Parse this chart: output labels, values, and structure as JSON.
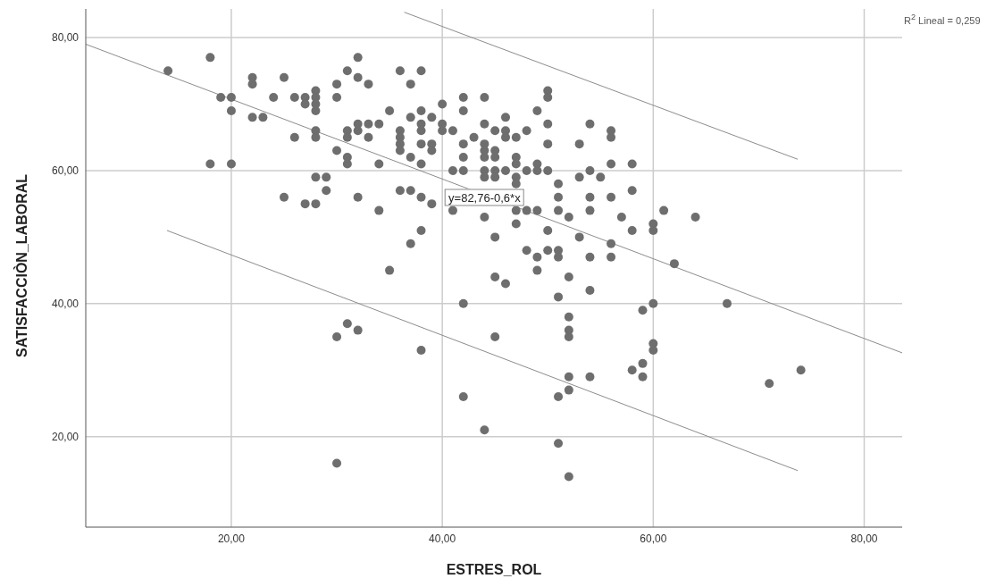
{
  "chart_data": {
    "type": "scatter",
    "xlabel": "ESTRES_ROL",
    "ylabel": "SATISFACCIÒN_LABORAL",
    "xlim": [
      6.2,
      83.6
    ],
    "ylim": [
      6.4,
      84.3
    ],
    "xticks": [
      {
        "value": 20,
        "label": "20,00"
      },
      {
        "value": 40,
        "label": "40,00"
      },
      {
        "value": 60,
        "label": "60,00"
      },
      {
        "value": 80,
        "label": "80,00"
      }
    ],
    "yticks": [
      {
        "value": 20,
        "label": "20,00"
      },
      {
        "value": 40,
        "label": "40,00"
      },
      {
        "value": 60,
        "label": "60,00"
      },
      {
        "value": 80,
        "label": "80,00"
      }
    ],
    "grid": true,
    "annotations": [
      {
        "text": "y=82,76-0,6*x",
        "x": 44,
        "y": 56
      },
      "R$^{2}$ Lineal = 0,259"
    ],
    "series": [
      {
        "marker": "circle",
        "color": "#6e6e6e",
        "x": [
          14,
          18,
          19,
          20,
          20,
          18,
          20,
          22,
          22,
          22,
          23,
          24,
          25,
          25,
          26,
          26,
          27,
          27,
          27,
          28,
          28,
          28,
          28,
          28,
          28,
          28,
          28,
          29,
          29,
          30,
          30,
          30,
          31,
          31,
          31,
          31,
          31,
          32,
          32,
          32,
          32,
          32,
          33,
          33,
          33,
          34,
          34,
          34,
          35,
          36,
          36,
          36,
          36,
          36,
          36,
          37,
          37,
          37,
          37,
          37,
          38,
          38,
          38,
          38,
          38,
          38,
          38,
          38,
          39,
          39,
          39,
          39,
          40,
          40,
          40,
          41,
          41,
          41,
          42,
          42,
          42,
          42,
          42,
          43,
          44,
          44,
          44,
          44,
          44,
          44,
          44,
          44,
          45,
          45,
          45,
          45,
          45,
          45,
          46,
          46,
          46,
          46,
          47,
          47,
          47,
          47,
          47,
          47,
          47,
          48,
          48,
          48,
          49,
          49,
          49,
          49,
          50,
          50,
          50,
          50,
          50,
          50,
          51,
          51,
          51,
          53,
          53,
          53,
          54,
          54,
          54,
          54,
          55,
          56,
          56,
          58,
          56,
          58,
          56,
          57,
          61,
          64,
          51,
          60,
          60,
          58,
          56,
          51,
          54,
          56,
          62,
          52,
          54,
          51,
          60,
          67,
          59,
          52,
          52,
          52,
          52,
          60,
          60,
          59,
          58,
          59,
          52,
          54,
          52,
          51,
          51,
          52,
          71,
          74,
          30,
          31,
          32,
          30,
          35,
          38,
          42,
          42,
          44,
          45,
          45,
          46,
          48,
          49,
          49,
          50
        ],
        "values": [
          75,
          77,
          71,
          71,
          69,
          61,
          61,
          74,
          73,
          68,
          68,
          71,
          74,
          56,
          71,
          65,
          71,
          70,
          55,
          72,
          71,
          70,
          69,
          66,
          65,
          59,
          55,
          59,
          57,
          73,
          71,
          63,
          75,
          66,
          65,
          62,
          61,
          77,
          74,
          67,
          66,
          56,
          73,
          67,
          65,
          67,
          61,
          54,
          69,
          75,
          66,
          65,
          64,
          63,
          57,
          73,
          68,
          62,
          57,
          49,
          75,
          69,
          67,
          66,
          64,
          61,
          56,
          51,
          68,
          64,
          63,
          55,
          70,
          67,
          66,
          66,
          60,
          54,
          71,
          69,
          64,
          62,
          60,
          65,
          71,
          67,
          64,
          63,
          62,
          60,
          59,
          53,
          66,
          63,
          62,
          60,
          59,
          50,
          68,
          66,
          65,
          60,
          65,
          62,
          61,
          59,
          58,
          54,
          52,
          66,
          60,
          54,
          69,
          61,
          60,
          54,
          72,
          71,
          67,
          64,
          60,
          51,
          58,
          56,
          54,
          64,
          59,
          50,
          67,
          60,
          56,
          54,
          59,
          66,
          65,
          61,
          61,
          57,
          56,
          53,
          54,
          53,
          48,
          52,
          51,
          51,
          49,
          47,
          47,
          47,
          46,
          44,
          42,
          41,
          40,
          40,
          39,
          38,
          36,
          35,
          29,
          34,
          33,
          31,
          30,
          29,
          27,
          29,
          14,
          26,
          19,
          53,
          28,
          30,
          35,
          37,
          36,
          16,
          45,
          33,
          40,
          26,
          21,
          44,
          35,
          43,
          48,
          47,
          45,
          48
        ]
      },
      {
        "type": "line",
        "color": "#8c8c8c",
        "x": [
          6.2,
          83.6
        ],
        "values": [
          79.0,
          32.6
        ]
      },
      {
        "type": "line",
        "color": "#8c8c8c",
        "x": [
          36.4,
          73.7
        ],
        "values": [
          83.8,
          61.7
        ]
      },
      {
        "type": "line",
        "color": "#8c8c8c",
        "x": [
          13.9,
          73.7
        ],
        "values": [
          51.0,
          14.9
        ]
      }
    ]
  }
}
